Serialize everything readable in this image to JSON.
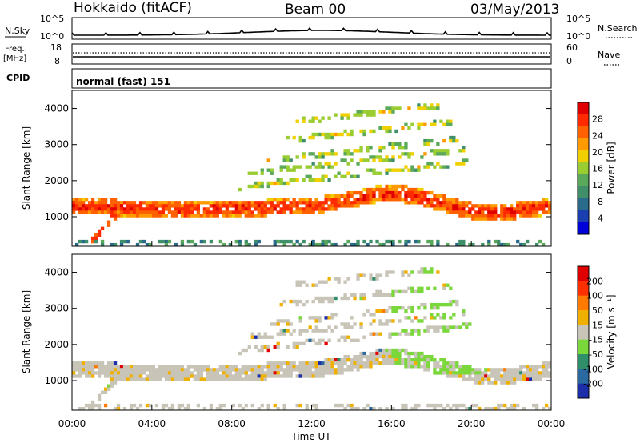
{
  "header": {
    "station": "Hokkaido (fitACF)",
    "beam": "Beam 00",
    "date": "03/May/2013"
  },
  "noise_panel": {
    "left_label": "N.Sky",
    "right_label": "N.Search",
    "left_ticks": [
      "10^5",
      "10^0"
    ],
    "right_ticks": [
      "10^5",
      "10^0"
    ]
  },
  "freq_panel": {
    "left_label_line1": "Freq.",
    "left_label_line2": "[MHz]",
    "right_label": "Nave",
    "left_ticks": [
      "18",
      "8"
    ],
    "right_ticks": [
      "60",
      "0"
    ]
  },
  "cpid_panel": {
    "label": "CPID",
    "value": "normal (fast) 151"
  },
  "chart_data": [
    {
      "type": "heatmap",
      "title": "",
      "xlabel": "",
      "ylabel": "Slant Range [km]",
      "xlim": [
        0,
        24
      ],
      "ylim": [
        180,
        4500
      ],
      "x_tick_labels": [
        "00:00",
        "04:00",
        "08:00",
        "12:00",
        "16:00",
        "20:00",
        "00:00"
      ],
      "y_ticks": [
        1000,
        2000,
        3000,
        4000
      ],
      "colorbar": {
        "label": "Power [dB]",
        "ticks": [
          4,
          8,
          12,
          16,
          20,
          24,
          28
        ],
        "range": [
          0,
          32
        ],
        "colors": [
          "#0000d8",
          "#1a3fb0",
          "#2a6a8a",
          "#3f8f6a",
          "#5aa85a",
          "#9acd32",
          "#f0d000",
          "#ff9a00",
          "#ff6000",
          "#ff2a00",
          "#e00000"
        ]
      }
    },
    {
      "type": "heatmap",
      "title": "",
      "xlabel": "Time UT",
      "ylabel": "Slant Range [km]",
      "xlim": [
        0,
        24
      ],
      "ylim": [
        180,
        4500
      ],
      "x_tick_labels": [
        "00:00",
        "04:00",
        "08:00",
        "12:00",
        "16:00",
        "20:00",
        "00:00"
      ],
      "y_ticks": [
        1000,
        2000,
        3000,
        4000
      ],
      "colorbar": {
        "label": "Velocity [m s⁻¹]",
        "ticks": [
          200,
          100,
          50,
          15,
          -15,
          -50,
          -100,
          -200
        ],
        "colors": [
          "#1c2fa8",
          "#2a6aa0",
          "#2e8f6a",
          "#7ad83a",
          "#c8c4b8",
          "#f0b000",
          "#ff7a00",
          "#ff3000",
          "#e00000"
        ]
      }
    }
  ]
}
